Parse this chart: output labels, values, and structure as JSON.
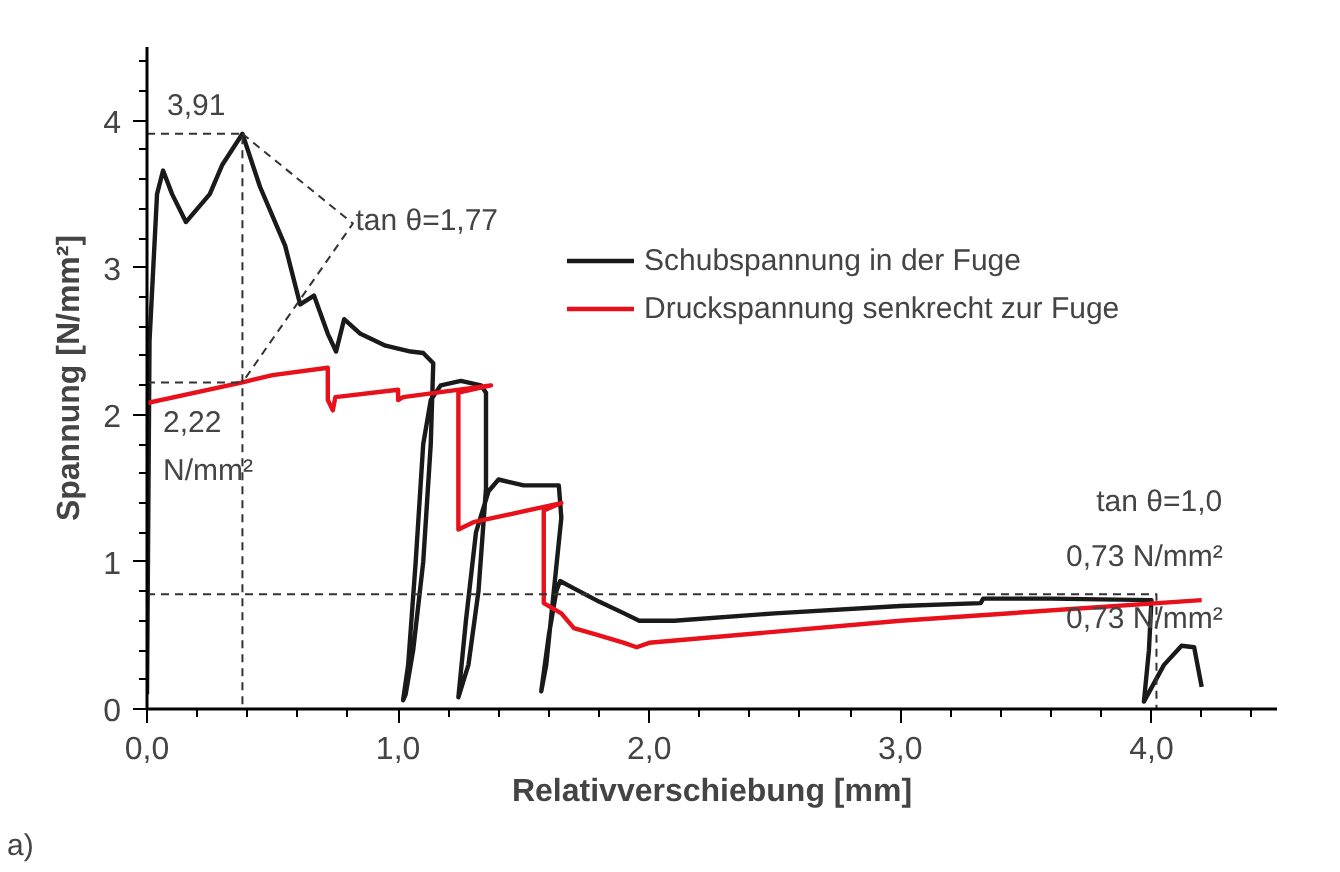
{
  "chart_data": {
    "type": "line",
    "xlabel": "Relativverschiebung [mm]",
    "ylabel": "Spannung [N/mm²]",
    "xlim": [
      0,
      4.5
    ],
    "ylim": [
      0,
      4.5
    ],
    "xticks": [
      {
        "value": 0,
        "label": "0,0"
      },
      {
        "value": 0.2,
        "label": null
      },
      {
        "value": 0.4,
        "label": null
      },
      {
        "value": 0.6,
        "label": null
      },
      {
        "value": 0.8,
        "label": null
      },
      {
        "value": 1,
        "label": "1,0"
      },
      {
        "value": 1.2,
        "label": null
      },
      {
        "value": 1.4,
        "label": null
      },
      {
        "value": 1.6,
        "label": null
      },
      {
        "value": 1.8,
        "label": null
      },
      {
        "value": 2,
        "label": "2,0"
      },
      {
        "value": 2.2,
        "label": null
      },
      {
        "value": 2.4,
        "label": null
      },
      {
        "value": 2.6,
        "label": null
      },
      {
        "value": 2.8,
        "label": null
      },
      {
        "value": 3,
        "label": "3,0"
      },
      {
        "value": 3.2,
        "label": null
      },
      {
        "value": 3.4,
        "label": null
      },
      {
        "value": 3.6,
        "label": null
      },
      {
        "value": 3.8,
        "label": null
      },
      {
        "value": 4,
        "label": "4,0"
      },
      {
        "value": 4.2,
        "label": null
      },
      {
        "value": 4.4,
        "label": null
      }
    ],
    "yticks": [
      0,
      {
        "value": 0.2,
        "label": null
      },
      {
        "value": 0.4,
        "label": null
      },
      {
        "value": 0.6,
        "label": null
      },
      {
        "value": 0.8,
        "label": null
      },
      1,
      {
        "value": 1.2,
        "label": null
      },
      {
        "value": 1.4,
        "label": null
      },
      {
        "value": 1.6,
        "label": null
      },
      {
        "value": 1.8,
        "label": null
      },
      2,
      {
        "value": 2.2,
        "label": null
      },
      {
        "value": 2.4,
        "label": null
      },
      {
        "value": 2.6,
        "label": null
      },
      {
        "value": 2.8,
        "label": null
      },
      3,
      {
        "value": 3.2,
        "label": null
      },
      {
        "value": 3.4,
        "label": null
      },
      {
        "value": 3.6,
        "label": null
      },
      {
        "value": 3.8,
        "label": null
      },
      4,
      {
        "value": 4.2,
        "label": null
      },
      {
        "value": 4.4,
        "label": null
      }
    ],
    "grid": false,
    "legend": "right",
    "line_style": "solid",
    "series": [
      {
        "name": "Schubspannung in der Fuge",
        "color": "#1a1a1a",
        "x": [
          0.0,
          0.01,
          0.04,
          0.064,
          0.1,
          0.155,
          0.25,
          0.3,
          0.38,
          0.45,
          0.55,
          0.61,
          0.665,
          0.72,
          0.753,
          0.785,
          0.85,
          0.95,
          1.05,
          1.1,
          1.14,
          1.13,
          1.1,
          1.06,
          1.03,
          1.02,
          1.04,
          1.07,
          1.1,
          1.13,
          1.17,
          1.25,
          1.33,
          1.35,
          1.35,
          1.32,
          1.28,
          1.24,
          1.27,
          1.31,
          1.36,
          1.4,
          1.5,
          1.64,
          1.65,
          1.62,
          1.59,
          1.57,
          1.6,
          1.63,
          1.645,
          1.7,
          1.8,
          1.9,
          1.96,
          2.1,
          2.5,
          3.0,
          3.32,
          3.33,
          3.6,
          4.0,
          3.99,
          3.97,
          4.05,
          4.12,
          4.17,
          4.2
        ],
        "values": [
          0.1,
          2.5,
          3.5,
          3.66,
          3.5,
          3.31,
          3.5,
          3.7,
          3.91,
          3.55,
          3.15,
          2.75,
          2.81,
          2.55,
          2.43,
          2.65,
          2.55,
          2.47,
          2.43,
          2.42,
          2.35,
          1.8,
          1.0,
          0.4,
          0.1,
          0.06,
          0.3,
          1.0,
          1.8,
          2.1,
          2.2,
          2.23,
          2.2,
          2.15,
          1.5,
          0.8,
          0.3,
          0.08,
          0.6,
          1.2,
          1.48,
          1.56,
          1.52,
          1.52,
          1.3,
          0.8,
          0.3,
          0.12,
          0.5,
          0.8,
          0.87,
          0.82,
          0.73,
          0.65,
          0.6,
          0.6,
          0.65,
          0.7,
          0.72,
          0.75,
          0.75,
          0.74,
          0.4,
          0.05,
          0.3,
          0.43,
          0.42,
          0.15
        ]
      },
      {
        "name": "Druckspannung senkrecht zur Fuge",
        "color": "#e8101a",
        "x": [
          0.0,
          0.38,
          0.5,
          0.72,
          0.72,
          0.74,
          0.75,
          1.0,
          1.0,
          1.02,
          1.37,
          1.24,
          1.24,
          1.3,
          1.65,
          1.58,
          1.58,
          1.65,
          1.7,
          1.8,
          1.9,
          1.95,
          2.0,
          3.0,
          4.2
        ],
        "values": [
          2.08,
          2.22,
          2.27,
          2.32,
          2.1,
          2.03,
          2.12,
          2.17,
          2.1,
          2.12,
          2.2,
          2.15,
          1.22,
          1.27,
          1.4,
          1.35,
          0.72,
          0.65,
          0.55,
          0.5,
          0.45,
          0.42,
          0.45,
          0.6,
          0.74
        ]
      },
      {
        "color": "#333333",
        "line_style": "dashed",
        "x": [
          0,
          0.38,
          0.38
        ],
        "values": [
          3.91,
          3.91,
          0
        ]
      },
      {
        "color": "#333333",
        "line_style": "dashed",
        "x": [
          0,
          0.38
        ],
        "values": [
          2.22,
          2.22
        ]
      },
      {
        "color": "#333333",
        "line_style": "dashed",
        "x": [
          0.38,
          0.82,
          0.38
        ],
        "values": [
          3.91,
          3.3,
          2.22
        ]
      },
      {
        "color": "#333333",
        "line_style": "dashed",
        "x": [
          0,
          4.02,
          4.02
        ],
        "values": [
          0.78,
          0.78,
          0
        ]
      }
    ],
    "annotations": [
      "3,91",
      "tan θ=1,77",
      "2,22\nN/mm²",
      "tan θ=1,0",
      "0,73 N/mm²",
      "0,73 N/mm²",
      "a)"
    ]
  }
}
